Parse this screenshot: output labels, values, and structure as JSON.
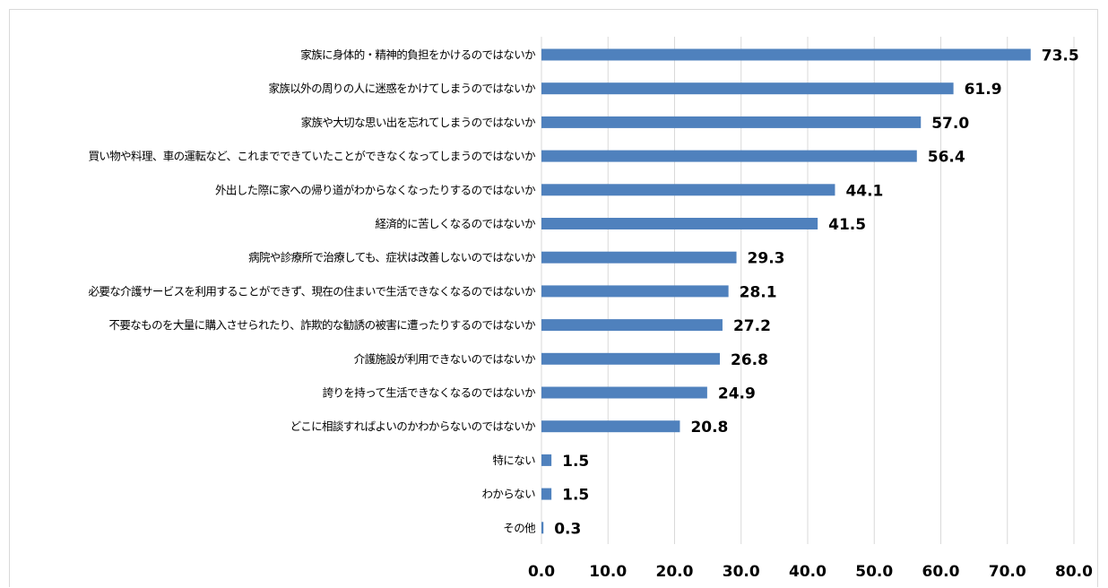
{
  "chart_data": {
    "type": "bar",
    "orientation": "horizontal",
    "categories": [
      "家族に身体的・精神的負担をかけるのではないか",
      "家族以外の周りの人に迷惑をかけてしまうのではないか",
      "家族や大切な思い出を忘れてしまうのではないか",
      "買い物や料理、車の運転など、これまでできていたことができなくなってしまうのではないか",
      "外出した際に家への帰り道がわからなくなったりするのではないか",
      "経済的に苦しくなるのではないか",
      "病院や診療所で治療しても、症状は改善しないのではないか",
      "必要な介護サービスを利用することができず、現在の住まいで生活できなくなるのではないか",
      "不要なものを大量に購入させられたり、詐欺的な勧誘の被害に遭ったりするのではないか",
      "介護施設が利用できないのではないか",
      "誇りを持って生活できなくなるのではないか",
      "どこに相談すればよいのかわからないのではないか",
      "特にない",
      "わからない",
      "その他"
    ],
    "values": [
      73.5,
      61.9,
      57.0,
      56.4,
      44.1,
      41.5,
      29.3,
      28.1,
      27.2,
      26.8,
      24.9,
      20.8,
      1.5,
      1.5,
      0.3
    ],
    "value_labels": [
      "73.5",
      "61.9",
      "57.0",
      "56.4",
      "44.1",
      "41.5",
      "29.3",
      "28.1",
      "27.2",
      "26.8",
      "24.9",
      "20.8",
      "1.5",
      "1.5",
      "0.3"
    ],
    "xlim": [
      0,
      80
    ],
    "xticks": [
      "0.0",
      "10.0",
      "20.0",
      "30.0",
      "40.0",
      "50.0",
      "60.0",
      "70.0",
      "80.0"
    ],
    "title": "",
    "xlabel": "",
    "ylabel": "",
    "grid": "vertical",
    "legend": "none",
    "bar_color": "#4f81bd",
    "grid_color": "#d9d9d9"
  }
}
